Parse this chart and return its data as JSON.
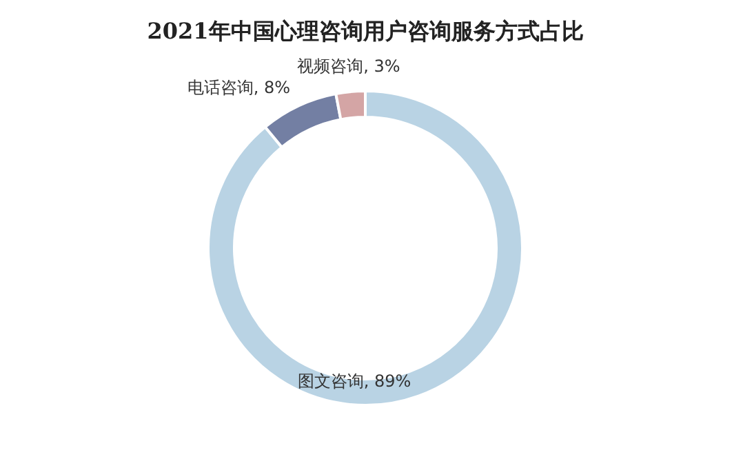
{
  "chart_data": {
    "type": "donut",
    "title": "2021年中国心理咨询用户咨询服务方式占比",
    "categories": [
      "图文咨询",
      "电话咨询",
      "视频咨询"
    ],
    "values": [
      89,
      8,
      3
    ],
    "colors": [
      "#b9d3e4",
      "#737fa3",
      "#d4a5a5"
    ],
    "value_labels": [
      ", 89%",
      ", 8%",
      ", 3%"
    ],
    "legend": false
  }
}
